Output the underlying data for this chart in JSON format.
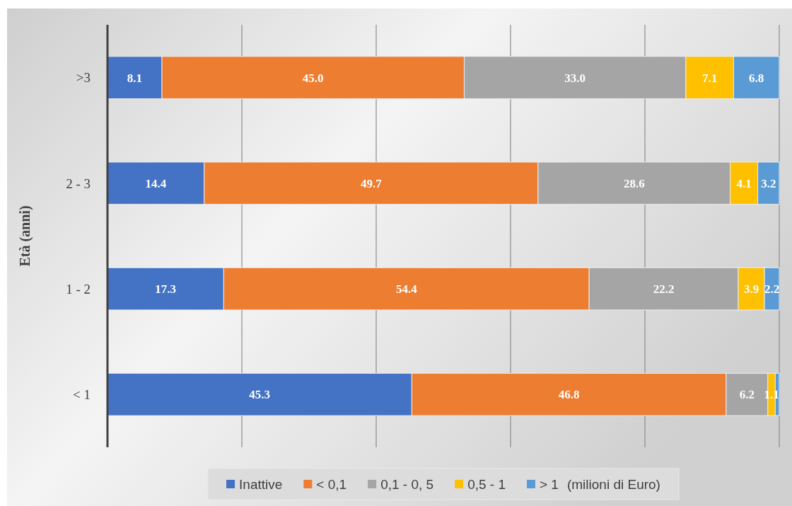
{
  "chart_data": {
    "type": "bar",
    "orientation": "horizontal",
    "stacked": true,
    "ylabel": "Età (anni)",
    "legend_title": "(milioni di Euro)",
    "legend": "bottom",
    "grid": "x",
    "tick_labels": "y",
    "categories": [
      ">3",
      "2 - 3",
      "1 - 2",
      "< 1"
    ],
    "xlim": [
      0,
      100
    ],
    "xticks": [
      {
        "value": 0,
        "label": null
      },
      {
        "value": 20,
        "label": null
      },
      {
        "value": 40,
        "label": null
      },
      {
        "value": 60,
        "label": null
      },
      {
        "value": 80,
        "label": null
      },
      {
        "value": 100,
        "label": null
      }
    ],
    "series": [
      {
        "name": "Inattive",
        "color": "#4472c4",
        "values": [
          8.1,
          14.4,
          17.3,
          45.3
        ],
        "value_labels": [
          "8.1",
          "14.4",
          "17.3",
          "45.3"
        ]
      },
      {
        "name": "< 0,1",
        "color": "#ed7d31",
        "values": [
          45.0,
          49.7,
          54.4,
          46.8
        ],
        "value_labels": [
          "45.0",
          "49.7",
          "54.4",
          "46.8"
        ]
      },
      {
        "name": "0,1 - 0, 5",
        "color": "#a5a5a5",
        "values": [
          33.0,
          28.6,
          22.2,
          6.2
        ],
        "value_labels": [
          "33.0",
          "28.6",
          "22.2",
          "6.2"
        ]
      },
      {
        "name": "0,5 - 1",
        "color": "#ffc000",
        "values": [
          7.1,
          4.1,
          3.9,
          1.1
        ],
        "value_labels": [
          "7.1",
          "4.1",
          "3.9",
          "1.1"
        ]
      },
      {
        "name": "> 1",
        "color": "#5b9bd5",
        "values": [
          6.8,
          3.2,
          2.2,
          0.6
        ],
        "value_labels": [
          "6.8",
          "3.2",
          "2.2",
          null
        ]
      }
    ]
  }
}
